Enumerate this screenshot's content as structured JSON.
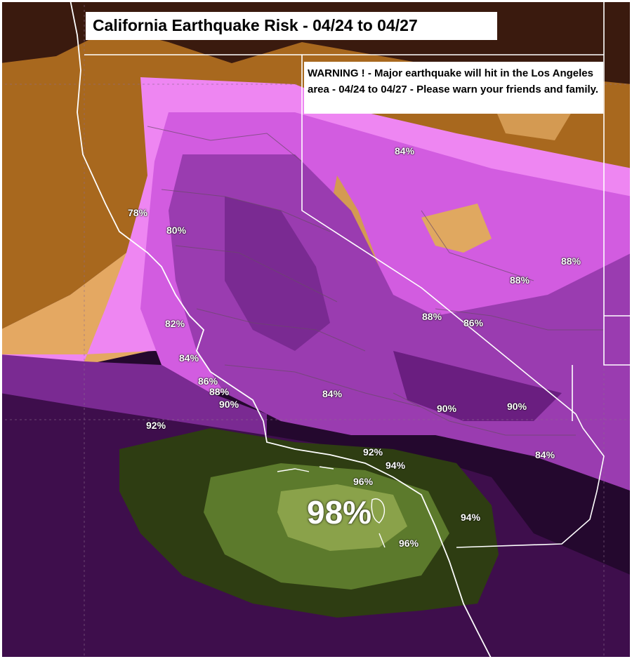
{
  "title": "California Earthquake Risk - 04/24 to 04/27",
  "warning": "WARNING ! - Major earthquake will hit in the Los Angeles area - 04/24 to 04/27 - Please warn your friends and family.",
  "labels": [
    "78%",
    "80%",
    "82%",
    "84%",
    "86%",
    "88%",
    "90%",
    "92%",
    "84%",
    "84%",
    "92%",
    "94%",
    "96%",
    "98%",
    "96%",
    "94%",
    "88%",
    "86%",
    "88%",
    "88%",
    "90%",
    "90%",
    "84%"
  ],
  "colors": {
    "border": "#ffffff",
    "ocean_dark": "#24082e",
    "risk_green_dark": "#2e3d12",
    "risk_green_mid": "#5c7a2c",
    "risk_green_light": "#8aa24a",
    "land_purple": "#9a3cb0",
    "land_magenta": "#d25ce0",
    "land_pink": "#ee86f2",
    "land_orange": "#d49a52",
    "land_brown": "#6a3a18"
  }
}
